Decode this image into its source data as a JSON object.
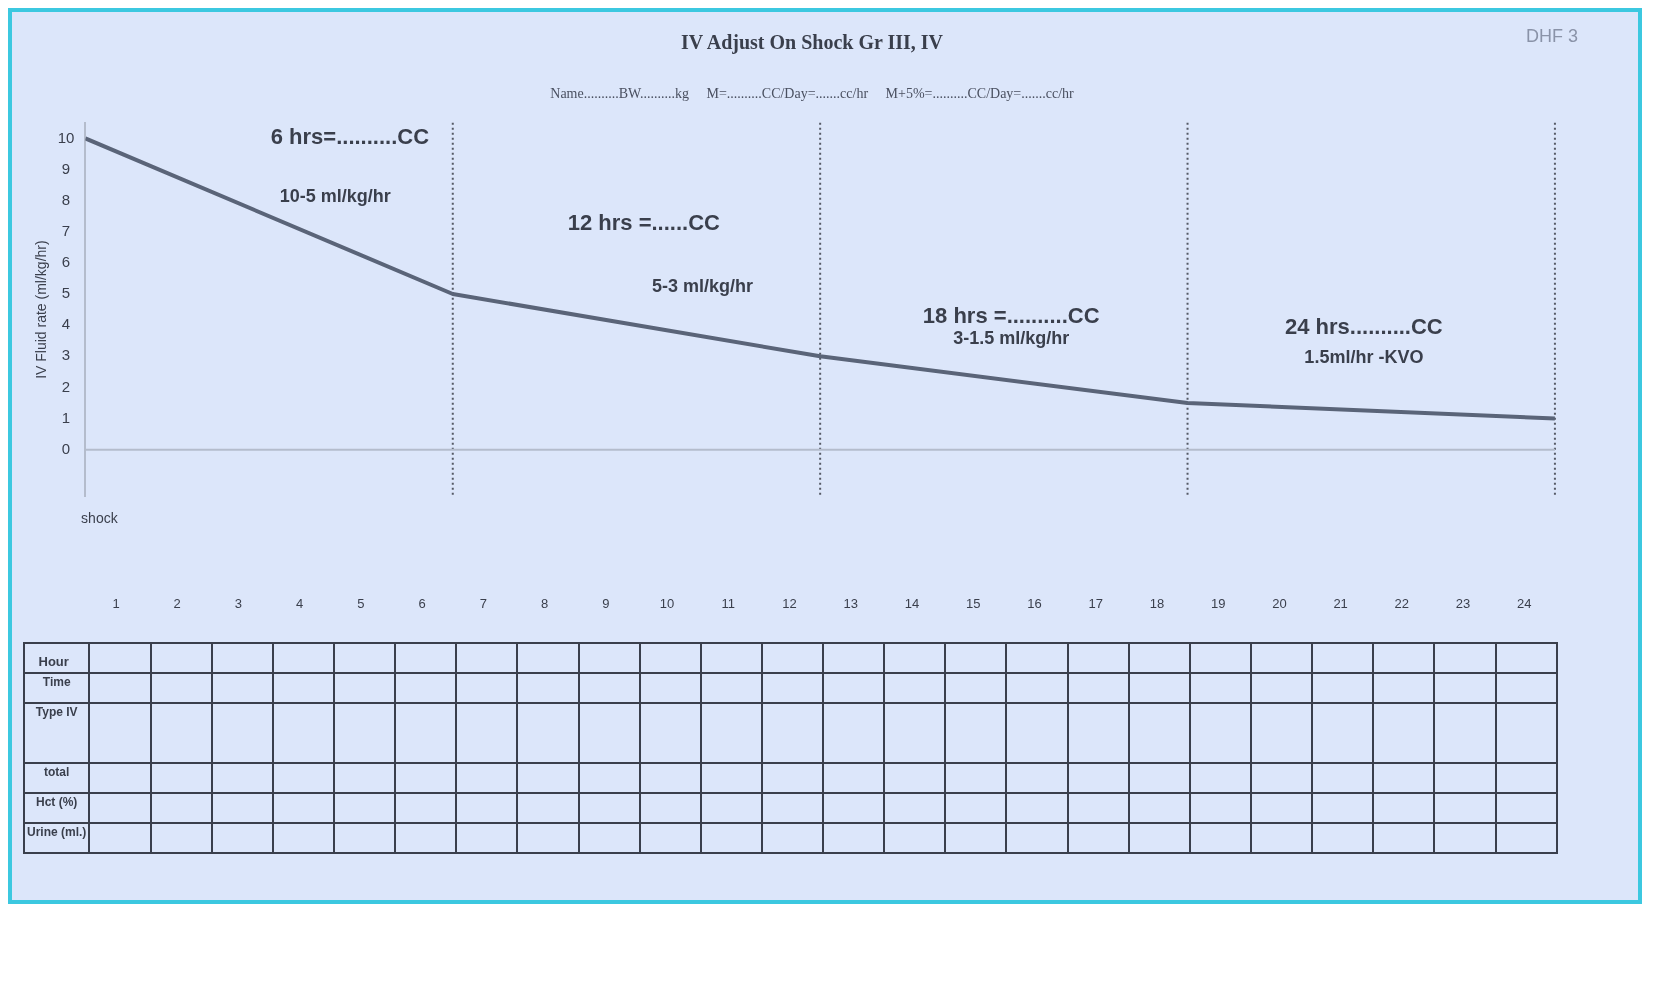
{
  "chart_data": {
    "type": "line",
    "title": "IV Adjust On Shock Gr III, IV",
    "subtitle": "Name..........BW..........kg     M=..........CC/Day=.......cc/hr     M+5%=..........CC/Day=.......cc/hr",
    "ylabel": "IV Fluid rate (ml/kg/hr)",
    "xlabel": "Hour",
    "x": [
      0,
      6,
      12,
      18,
      24
    ],
    "series": [
      {
        "color": "#5a6478",
        "values": [
          10,
          5,
          3,
          1.5,
          1
        ]
      }
    ],
    "xlim": [
      0,
      24
    ],
    "xticks": [
      {
        "value": 0.5,
        "label": "1"
      },
      {
        "value": 1.5,
        "label": "2"
      },
      {
        "value": 2.5,
        "label": "3"
      },
      {
        "value": 3.5,
        "label": "4"
      },
      {
        "value": 4.5,
        "label": "5"
      },
      {
        "value": 5.5,
        "label": "6"
      },
      {
        "value": 6.5,
        "label": "7"
      },
      {
        "value": 7.5,
        "label": "8"
      },
      {
        "value": 8.5,
        "label": "9"
      },
      {
        "value": 9.5,
        "label": "10"
      },
      {
        "value": 10.5,
        "label": "11"
      },
      {
        "value": 11.5,
        "label": "12"
      },
      {
        "value": 12.5,
        "label": "13"
      },
      {
        "value": 13.5,
        "label": "14"
      },
      {
        "value": 14.5,
        "label": "15"
      },
      {
        "value": 15.5,
        "label": "16"
      },
      {
        "value": 16.5,
        "label": "17"
      },
      {
        "value": 17.5,
        "label": "18"
      },
      {
        "value": 18.5,
        "label": "19"
      },
      {
        "value": 19.5,
        "label": "20"
      },
      {
        "value": 20.5,
        "label": "21"
      },
      {
        "value": 21.5,
        "label": "22"
      },
      {
        "value": 22.5,
        "label": "23"
      },
      {
        "value": 23.5,
        "label": "24"
      }
    ],
    "ylim": [
      -1.5,
      10.5
    ],
    "yticks": [
      0,
      1,
      2,
      3,
      4,
      5,
      6,
      7,
      8,
      9,
      10
    ],
    "grid": false,
    "legend": false,
    "marker": "none",
    "line_style": "solid",
    "ref_lines": [
      {
        "axis": "x",
        "value": 6,
        "color": "#555a66",
        "line_style": "dotted"
      },
      {
        "axis": "x",
        "value": 12,
        "color": "#555a66",
        "line_style": "dotted"
      },
      {
        "axis": "x",
        "value": 18,
        "color": "#555a66",
        "line_style": "dotted"
      },
      {
        "axis": "x",
        "value": 24,
        "color": "#555a66",
        "line_style": "dotted"
      },
      {
        "axis": "y",
        "value": 0,
        "color": "#b4bccc",
        "line_style": "solid"
      }
    ],
    "annotations": [
      "DHF 3",
      "Time",
      "Type IV",
      "total",
      "Hct (%)",
      "Urine (ml.)",
      "shock",
      "6 hrs=..........CC",
      "10-5 ml/kg/hr",
      "12 hrs =......CC",
      "5-3 ml/kg/hr",
      "18 hrs =..........CC",
      "3-1.5 ml/kg/hr",
      "24 hrs..........CC",
      "1.5ml/hr -KVO"
    ]
  }
}
